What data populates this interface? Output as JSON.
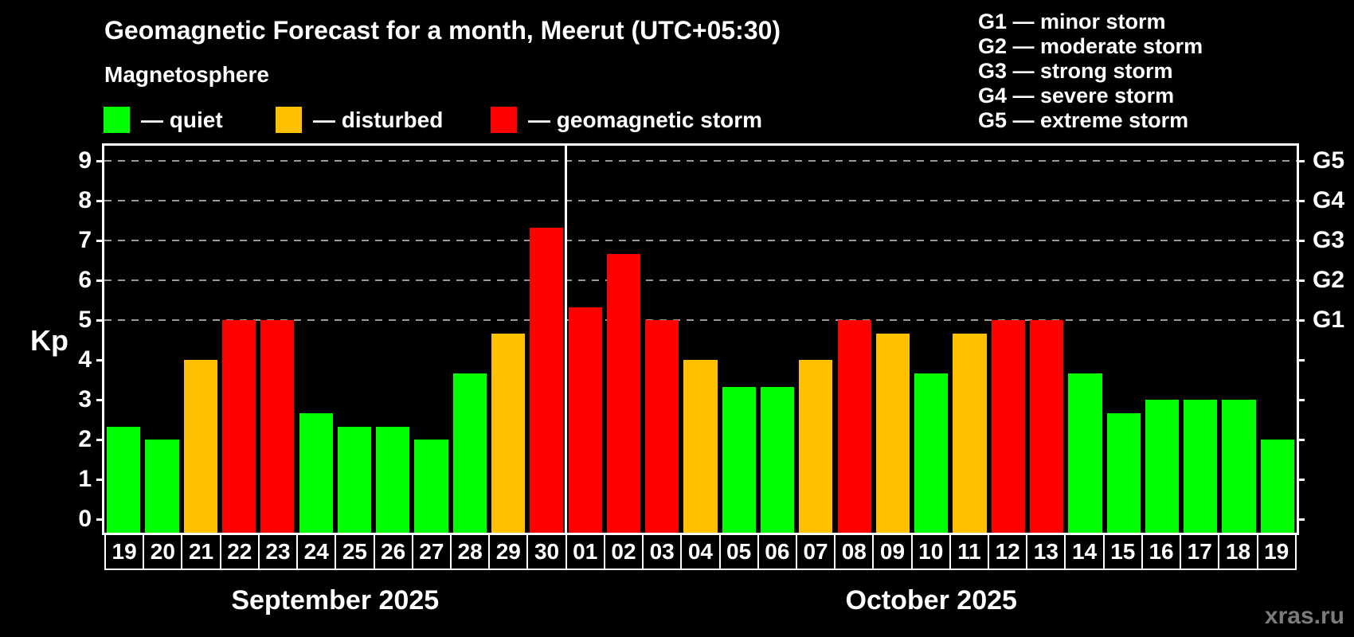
{
  "title": "Geomagnetic Forecast for a month, Meerut (UTC+05:30)",
  "subtitle": "Magnetosphere",
  "watermark": "xras.ru",
  "legend": {
    "items": [
      {
        "status": "quiet",
        "label": "— quiet",
        "color": "#00ff00"
      },
      {
        "status": "disturbed",
        "label": "— disturbed",
        "color": "#ffc000"
      },
      {
        "status": "storm",
        "label": "— geomagnetic storm",
        "color": "#ff0000"
      }
    ]
  },
  "storm_legend": {
    "lines": [
      "G1 — minor storm",
      "G2 — moderate storm",
      "G3 — strong storm",
      "G4 — severe storm",
      "G5 — extreme storm"
    ]
  },
  "chart_data": {
    "type": "bar",
    "ylabel": "Kp",
    "y_axis": {
      "ticks": [
        0,
        1,
        2,
        3,
        4,
        5,
        6,
        7,
        8,
        9
      ],
      "gridlines_at": [
        5,
        6,
        7,
        8,
        9
      ],
      "grid_style": "dashed horizontal gray"
    },
    "right_axis": [
      {
        "kp": 5,
        "label": "G1"
      },
      {
        "kp": 6,
        "label": "G2"
      },
      {
        "kp": 7,
        "label": "G3"
      },
      {
        "kp": 8,
        "label": "G4"
      },
      {
        "kp": 9,
        "label": "G5"
      }
    ],
    "status_colors": {
      "quiet": "#00ff00",
      "disturbed": "#ffc000",
      "storm": "#ff0000"
    },
    "legend_position": "top-left",
    "months": [
      {
        "label": "September 2025",
        "days": [
          {
            "day": "19",
            "kp": 2.33,
            "status": "quiet"
          },
          {
            "day": "20",
            "kp": 2.0,
            "status": "quiet"
          },
          {
            "day": "21",
            "kp": 4.0,
            "status": "disturbed"
          },
          {
            "day": "22",
            "kp": 5.0,
            "status": "storm"
          },
          {
            "day": "23",
            "kp": 5.0,
            "status": "storm"
          },
          {
            "day": "24",
            "kp": 2.67,
            "status": "quiet"
          },
          {
            "day": "25",
            "kp": 2.33,
            "status": "quiet"
          },
          {
            "day": "26",
            "kp": 2.33,
            "status": "quiet"
          },
          {
            "day": "27",
            "kp": 2.0,
            "status": "quiet"
          },
          {
            "day": "28",
            "kp": 3.67,
            "status": "quiet"
          },
          {
            "day": "29",
            "kp": 4.67,
            "status": "disturbed"
          },
          {
            "day": "30",
            "kp": 7.33,
            "status": "storm"
          }
        ]
      },
      {
        "label": "October 2025",
        "days": [
          {
            "day": "01",
            "kp": 5.33,
            "status": "storm"
          },
          {
            "day": "02",
            "kp": 6.67,
            "status": "storm"
          },
          {
            "day": "03",
            "kp": 5.0,
            "status": "storm"
          },
          {
            "day": "04",
            "kp": 4.0,
            "status": "disturbed"
          },
          {
            "day": "05",
            "kp": 3.33,
            "status": "quiet"
          },
          {
            "day": "06",
            "kp": 3.33,
            "status": "quiet"
          },
          {
            "day": "07",
            "kp": 4.0,
            "status": "disturbed"
          },
          {
            "day": "08",
            "kp": 5.0,
            "status": "storm"
          },
          {
            "day": "09",
            "kp": 4.67,
            "status": "disturbed"
          },
          {
            "day": "10",
            "kp": 3.67,
            "status": "quiet"
          },
          {
            "day": "11",
            "kp": 4.67,
            "status": "disturbed"
          },
          {
            "day": "12",
            "kp": 5.0,
            "status": "storm"
          },
          {
            "day": "13",
            "kp": 5.0,
            "status": "storm"
          },
          {
            "day": "14",
            "kp": 3.67,
            "status": "quiet"
          },
          {
            "day": "15",
            "kp": 2.67,
            "status": "quiet"
          },
          {
            "day": "16",
            "kp": 3.0,
            "status": "quiet"
          },
          {
            "day": "17",
            "kp": 3.0,
            "status": "quiet"
          },
          {
            "day": "18",
            "kp": 3.0,
            "status": "quiet"
          },
          {
            "day": "19",
            "kp": 2.0,
            "status": "quiet"
          }
        ]
      }
    ]
  }
}
